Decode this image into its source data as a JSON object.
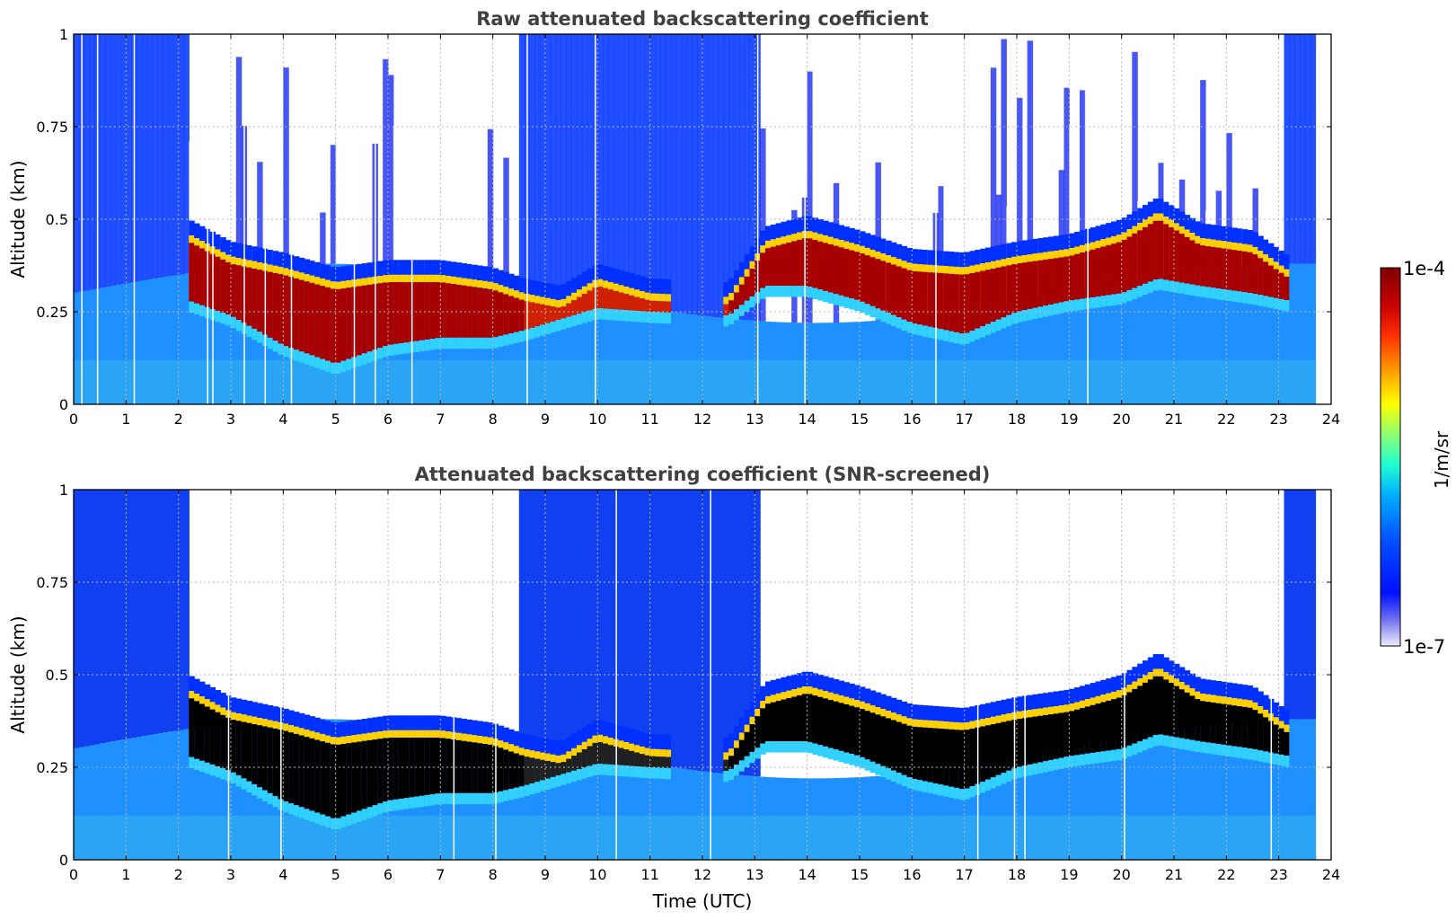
{
  "chart_data": [
    {
      "type": "heatmap",
      "title": "Raw attenuated backscattering coefficient",
      "xlabel": "",
      "ylabel": "Altitude (km)",
      "xlim": [
        0,
        24
      ],
      "ylim": [
        0,
        1
      ],
      "x_ticks": [
        "0",
        "1",
        "2",
        "3",
        "4",
        "5",
        "6",
        "7",
        "8",
        "9",
        "10",
        "11",
        "12",
        "13",
        "14",
        "15",
        "16",
        "17",
        "18",
        "19",
        "20",
        "21",
        "22",
        "23",
        "24"
      ],
      "y_ticks": [
        "0",
        "0.25",
        "0.5",
        "0.75",
        "1"
      ],
      "grid": true,
      "data_end_time": 23.65,
      "layer_top_km": [
        [
          2.2,
          0.46
        ],
        [
          3.0,
          0.4
        ],
        [
          4.0,
          0.37
        ],
        [
          5.0,
          0.33
        ],
        [
          6.0,
          0.35
        ],
        [
          7.0,
          0.35
        ],
        [
          8.0,
          0.33
        ],
        [
          8.6,
          0.3
        ],
        [
          9.3,
          0.28
        ],
        [
          10.0,
          0.34
        ],
        [
          11.0,
          0.3
        ],
        [
          12.5,
          0.29
        ],
        [
          13.2,
          0.44
        ],
        [
          14.0,
          0.47
        ],
        [
          15.0,
          0.43
        ],
        [
          16.0,
          0.38
        ],
        [
          17.0,
          0.37
        ],
        [
          18.0,
          0.4
        ],
        [
          19.0,
          0.42
        ],
        [
          20.0,
          0.46
        ],
        [
          20.7,
          0.52
        ],
        [
          21.5,
          0.45
        ],
        [
          22.5,
          0.43
        ],
        [
          23.2,
          0.36
        ]
      ],
      "layer_base_km": [
        [
          2.2,
          0.28
        ],
        [
          3.0,
          0.24
        ],
        [
          4.0,
          0.16
        ],
        [
          5.0,
          0.11
        ],
        [
          6.0,
          0.16
        ],
        [
          7.0,
          0.18
        ],
        [
          8.0,
          0.18
        ],
        [
          8.6,
          0.2
        ],
        [
          9.3,
          0.23
        ],
        [
          10.0,
          0.26
        ],
        [
          11.0,
          0.25
        ],
        [
          12.5,
          0.24
        ],
        [
          13.2,
          0.32
        ],
        [
          14.0,
          0.32
        ],
        [
          15.0,
          0.28
        ],
        [
          16.0,
          0.22
        ],
        [
          17.0,
          0.19
        ],
        [
          18.0,
          0.25
        ],
        [
          19.0,
          0.28
        ],
        [
          20.0,
          0.3
        ],
        [
          20.7,
          0.34
        ],
        [
          21.5,
          0.32
        ],
        [
          22.5,
          0.3
        ],
        [
          23.2,
          0.28
        ]
      ]
    },
    {
      "type": "heatmap",
      "title": "Attenuated backscattering coefficient (SNR-screened)",
      "xlabel": "Time (UTC)",
      "ylabel": "Altitude (km)",
      "xlim": [
        0,
        24
      ],
      "ylim": [
        0,
        1
      ],
      "x_ticks": [
        "0",
        "1",
        "2",
        "3",
        "4",
        "5",
        "6",
        "7",
        "8",
        "9",
        "10",
        "11",
        "12",
        "13",
        "14",
        "15",
        "16",
        "17",
        "18",
        "19",
        "20",
        "21",
        "22",
        "23",
        "24"
      ],
      "y_ticks": [
        "0",
        "0.25",
        "0.5",
        "0.75",
        "1"
      ],
      "grid": true,
      "data_end_time": 23.65
    }
  ],
  "colorbar": {
    "label": "1/m/sr",
    "max_label": "1e-4",
    "min_label": "1e-7",
    "colors": [
      "#7f0000",
      "#b30000",
      "#e01b00",
      "#ff5a00",
      "#ffa500",
      "#ffe000",
      "#c8ff36",
      "#7dff7a",
      "#3dffba",
      "#16e0ff",
      "#00a0ff",
      "#0060ff",
      "#0020ff",
      "#2020f8",
      "#6060f0",
      "#a0a0f0",
      "#e6e6fa"
    ]
  }
}
